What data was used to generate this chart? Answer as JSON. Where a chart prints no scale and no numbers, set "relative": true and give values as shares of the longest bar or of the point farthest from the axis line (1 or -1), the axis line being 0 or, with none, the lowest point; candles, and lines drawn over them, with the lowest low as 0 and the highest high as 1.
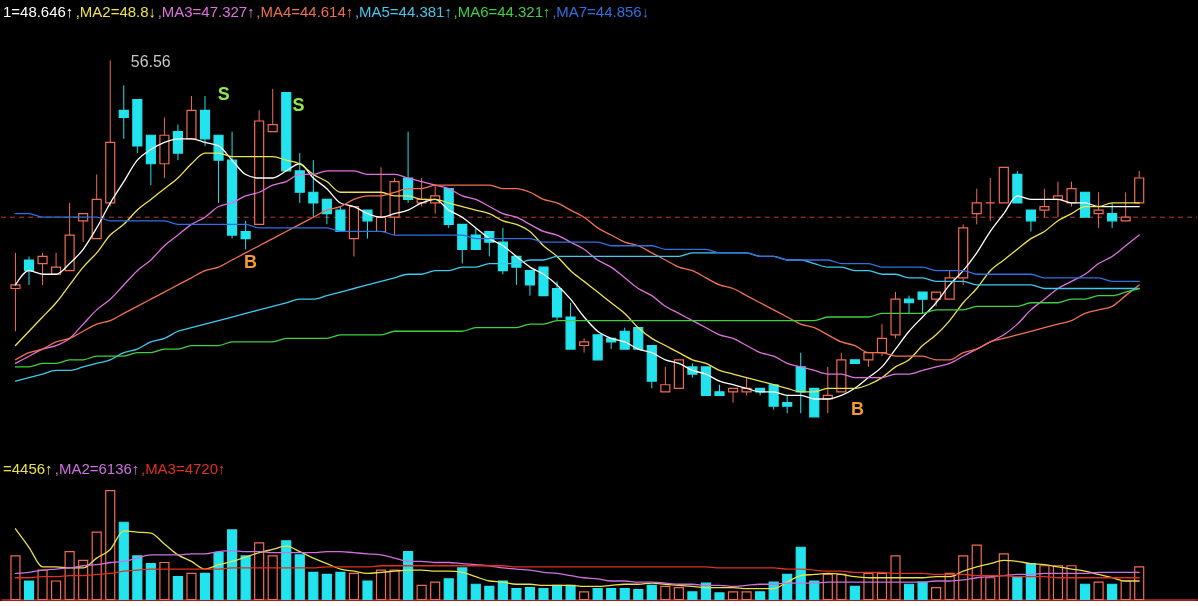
{
  "chart_data": [
    {
      "type": "candlestick",
      "relative": true,
      "legend": "top left",
      "categories": [
        null,
        null,
        null,
        null,
        null,
        null,
        null,
        null,
        null,
        null,
        null,
        null,
        null,
        null,
        null,
        null,
        null,
        null,
        null,
        null,
        null,
        null,
        null,
        null,
        null,
        null,
        null,
        null,
        null,
        null,
        null,
        null,
        null,
        null,
        null,
        null,
        null,
        null,
        null,
        null,
        null,
        null,
        null,
        null,
        null,
        null,
        null,
        null,
        null,
        null,
        null,
        null,
        null,
        null,
        null,
        null,
        null,
        null,
        null,
        null,
        null,
        null,
        null,
        null,
        null,
        null,
        null,
        null,
        null,
        null,
        null,
        null,
        null,
        null,
        null,
        null,
        null,
        null,
        null,
        null,
        null,
        null,
        null,
        null
      ],
      "ohlc": [
        [
          0.36,
          0.46,
          0.24,
          0.37
        ],
        [
          0.44,
          0.45,
          0.37,
          0.41
        ],
        [
          0.43,
          0.46,
          0.37,
          0.45
        ],
        [
          0.4,
          0.46,
          0.4,
          0.42
        ],
        [
          0.41,
          0.6,
          0.41,
          0.51
        ],
        [
          0.55,
          0.57,
          0.49,
          0.57
        ],
        [
          0.5,
          0.68,
          0.5,
          0.61
        ],
        [
          0.6,
          1.0,
          0.59,
          0.77
        ],
        [
          0.86,
          0.93,
          0.78,
          0.84
        ],
        [
          0.89,
          0.89,
          0.74,
          0.76
        ],
        [
          0.79,
          0.79,
          0.65,
          0.71
        ],
        [
          0.71,
          0.84,
          0.67,
          0.79
        ],
        [
          0.8,
          0.82,
          0.72,
          0.74
        ],
        [
          0.78,
          0.9,
          0.78,
          0.86
        ],
        [
          0.86,
          0.9,
          0.76,
          0.78
        ],
        [
          0.79,
          0.79,
          0.6,
          0.72
        ],
        [
          0.72,
          0.8,
          0.5,
          0.51
        ],
        [
          0.52,
          0.55,
          0.47,
          0.5
        ],
        [
          0.54,
          0.86,
          0.54,
          0.83
        ],
        [
          0.8,
          0.92,
          0.8,
          0.82
        ],
        [
          0.91,
          0.91,
          0.69,
          0.69
        ],
        [
          0.69,
          0.74,
          0.6,
          0.63
        ],
        [
          0.63,
          0.72,
          0.56,
          0.6
        ],
        [
          0.61,
          0.61,
          0.54,
          0.57
        ],
        [
          0.58,
          0.59,
          0.52,
          0.52
        ],
        [
          0.5,
          0.59,
          0.45,
          0.59
        ],
        [
          0.58,
          0.58,
          0.5,
          0.55
        ],
        [
          0.52,
          0.7,
          0.52,
          0.56
        ],
        [
          0.56,
          0.67,
          0.51,
          0.66
        ],
        [
          0.67,
          0.8,
          0.6,
          0.61
        ],
        [
          0.6,
          0.67,
          0.59,
          0.61
        ],
        [
          0.6,
          0.65,
          0.57,
          0.62
        ],
        [
          0.64,
          0.64,
          0.53,
          0.54
        ],
        [
          0.54,
          0.54,
          0.43,
          0.47
        ],
        [
          0.51,
          0.53,
          0.47,
          0.47
        ],
        [
          0.52,
          0.52,
          0.45,
          0.49
        ],
        [
          0.49,
          0.53,
          0.4,
          0.41
        ],
        [
          0.45,
          0.45,
          0.37,
          0.42
        ],
        [
          0.41,
          0.41,
          0.34,
          0.37
        ],
        [
          0.42,
          0.42,
          0.34,
          0.34
        ],
        [
          0.36,
          0.38,
          0.27,
          0.28
        ],
        [
          0.28,
          0.32,
          0.19,
          0.19
        ],
        [
          0.2,
          0.22,
          0.18,
          0.21
        ],
        [
          0.23,
          0.23,
          0.16,
          0.16
        ],
        [
          0.22,
          0.22,
          0.19,
          0.21
        ],
        [
          0.24,
          0.25,
          0.19,
          0.19
        ],
        [
          0.25,
          0.25,
          0.19,
          0.19
        ],
        [
          0.2,
          0.2,
          0.08,
          0.1
        ],
        [
          0.07,
          0.14,
          0.07,
          0.09
        ],
        [
          0.08,
          0.16,
          0.08,
          0.16
        ],
        [
          0.14,
          0.15,
          0.11,
          0.12
        ],
        [
          0.14,
          0.14,
          0.06,
          0.06
        ],
        [
          0.07,
          0.09,
          0.06,
          0.06
        ],
        [
          0.07,
          0.08,
          0.04,
          0.08
        ],
        [
          0.07,
          0.11,
          0.06,
          0.08
        ],
        [
          0.08,
          0.08,
          0.06,
          0.07
        ],
        [
          0.09,
          0.09,
          0.02,
          0.03
        ],
        [
          0.04,
          0.06,
          0.01,
          0.03
        ],
        [
          0.14,
          0.18,
          0.01,
          0.07
        ],
        [
          0.08,
          0.08,
          0.0,
          0.0
        ],
        [
          0.05,
          0.14,
          0.01,
          0.06
        ],
        [
          0.07,
          0.18,
          0.07,
          0.16
        ],
        [
          0.16,
          0.16,
          0.15,
          0.15
        ],
        [
          0.16,
          0.18,
          0.14,
          0.18
        ],
        [
          0.18,
          0.26,
          0.17,
          0.22
        ],
        [
          0.23,
          0.35,
          0.22,
          0.33
        ],
        [
          0.33,
          0.34,
          0.29,
          0.32
        ],
        [
          0.35,
          0.35,
          0.29,
          0.33
        ],
        [
          0.33,
          0.35,
          0.31,
          0.35
        ],
        [
          0.33,
          0.41,
          0.33,
          0.39
        ],
        [
          0.39,
          0.54,
          0.37,
          0.53
        ],
        [
          0.57,
          0.64,
          0.54,
          0.6
        ],
        [
          0.6,
          0.67,
          0.55,
          0.6
        ],
        [
          0.6,
          0.7,
          0.6,
          0.7
        ],
        [
          0.68,
          0.69,
          0.6,
          0.6
        ],
        [
          0.58,
          0.58,
          0.52,
          0.55
        ],
        [
          0.58,
          0.64,
          0.56,
          0.59
        ],
        [
          0.61,
          0.66,
          0.56,
          0.62
        ],
        [
          0.6,
          0.66,
          0.59,
          0.64
        ],
        [
          0.63,
          0.63,
          0.56,
          0.56
        ],
        [
          0.57,
          0.63,
          0.53,
          0.58
        ],
        [
          0.57,
          0.6,
          0.53,
          0.55
        ],
        [
          0.55,
          0.63,
          0.55,
          0.56
        ],
        [
          0.6,
          0.69,
          0.6,
          0.67
        ]
      ],
      "colors": [
        "#f26b50",
        "#22e3ee",
        "#f26b50",
        "#f26b50",
        "#f26b50",
        "#f26b50",
        "#f26b50",
        "#f26b50",
        "#22e3ee",
        "#22e3ee",
        "#22e3ee",
        "#f26b50",
        "#22e3ee",
        "#f26b50",
        "#22e3ee",
        "#22e3ee",
        "#22e3ee",
        "#22e3ee",
        "#f26b50",
        "#f26b50",
        "#22e3ee",
        "#22e3ee",
        "#22e3ee",
        "#22e3ee",
        "#22e3ee",
        "#f26b50",
        "#22e3ee",
        "#f26b50",
        "#f26b50",
        "#22e3ee",
        "#f26b50",
        "#f26b50",
        "#22e3ee",
        "#22e3ee",
        "#22e3ee",
        "#22e3ee",
        "#22e3ee",
        "#22e3ee",
        "#22e3ee",
        "#22e3ee",
        "#22e3ee",
        "#22e3ee",
        "#f26b50",
        "#22e3ee",
        "#22e3ee",
        "#22e3ee",
        "#22e3ee",
        "#22e3ee",
        "#f26b50",
        "#f26b50",
        "#22e3ee",
        "#22e3ee",
        "#22e3ee",
        "#f26b50",
        "#f26b50",
        "#22e3ee",
        "#22e3ee",
        "#22e3ee",
        "#22e3ee",
        "#22e3ee",
        "#f26b50",
        "#f26b50",
        "#22e3ee",
        "#f26b50",
        "#f26b50",
        "#f26b50",
        "#22e3ee",
        "#22e3ee",
        "#f26b50",
        "#f26b50",
        "#f26b50",
        "#f26b50",
        "#f26b50",
        "#f26b50",
        "#22e3ee",
        "#22e3ee",
        "#f26b50",
        "#f26b50",
        "#f26b50",
        "#22e3ee",
        "#f26b50",
        "#22e3ee",
        "#f26b50",
        "#f26b50"
      ],
      "series": [
        {
          "type": "line",
          "name": "1=48.646↑",
          "color": "#ffffff",
          "values": [
            0.37,
            0.41,
            0.4,
            0.4,
            0.43,
            0.47,
            0.53,
            0.6,
            0.66,
            0.72,
            0.75,
            0.77,
            0.78,
            0.78,
            0.77,
            0.76,
            0.72,
            0.68,
            0.67,
            0.67,
            0.69,
            0.71,
            0.67,
            0.64,
            0.6,
            0.59,
            0.57,
            0.56,
            0.57,
            0.58,
            0.6,
            0.61,
            0.58,
            0.56,
            0.53,
            0.5,
            0.48,
            0.45,
            0.42,
            0.4,
            0.37,
            0.33,
            0.28,
            0.24,
            0.22,
            0.21,
            0.19,
            0.18,
            0.16,
            0.15,
            0.13,
            0.12,
            0.1,
            0.09,
            0.08,
            0.07,
            0.07,
            0.06,
            0.06,
            0.05,
            0.05,
            0.06,
            0.08,
            0.11,
            0.14,
            0.19,
            0.24,
            0.28,
            0.32,
            0.37,
            0.41,
            0.46,
            0.52,
            0.57,
            0.62,
            0.61,
            0.61,
            0.61,
            0.6,
            0.6,
            0.59,
            0.59,
            0.59,
            0.59
          ]
        },
        {
          "type": "line",
          "name": ",MA2=48.8↓",
          "color": "#f0e050",
          "values": [
            0.2,
            0.24,
            0.28,
            0.32,
            0.37,
            0.42,
            0.46,
            0.51,
            0.54,
            0.58,
            0.61,
            0.64,
            0.67,
            0.71,
            0.74,
            0.74,
            0.73,
            0.73,
            0.73,
            0.73,
            0.72,
            0.71,
            0.68,
            0.66,
            0.63,
            0.63,
            0.63,
            0.63,
            0.62,
            0.62,
            0.61,
            0.61,
            0.6,
            0.59,
            0.58,
            0.57,
            0.55,
            0.54,
            0.52,
            0.48,
            0.45,
            0.41,
            0.38,
            0.35,
            0.32,
            0.29,
            0.25,
            0.22,
            0.2,
            0.18,
            0.16,
            0.15,
            0.13,
            0.12,
            0.11,
            0.1,
            0.09,
            0.08,
            0.07,
            0.07,
            0.08,
            0.08,
            0.08,
            0.09,
            0.11,
            0.14,
            0.16,
            0.2,
            0.23,
            0.27,
            0.32,
            0.36,
            0.41,
            0.44,
            0.47,
            0.5,
            0.52,
            0.55,
            0.57,
            0.59,
            0.59,
            0.6,
            0.6,
            0.6
          ]
        },
        {
          "type": "line",
          "name": ",MA3=47.327↑",
          "color": "#e070e0",
          "values": [
            0.15,
            0.17,
            0.19,
            0.2,
            0.22,
            0.26,
            0.3,
            0.33,
            0.37,
            0.41,
            0.44,
            0.48,
            0.51,
            0.54,
            0.56,
            0.59,
            0.6,
            0.62,
            0.63,
            0.65,
            0.66,
            0.68,
            0.68,
            0.69,
            0.69,
            0.69,
            0.68,
            0.68,
            0.68,
            0.67,
            0.66,
            0.65,
            0.64,
            0.62,
            0.61,
            0.59,
            0.57,
            0.56,
            0.54,
            0.52,
            0.51,
            0.49,
            0.47,
            0.44,
            0.42,
            0.39,
            0.36,
            0.34,
            0.31,
            0.29,
            0.27,
            0.25,
            0.23,
            0.22,
            0.2,
            0.18,
            0.17,
            0.15,
            0.14,
            0.13,
            0.12,
            0.12,
            0.11,
            0.11,
            0.11,
            0.12,
            0.12,
            0.13,
            0.14,
            0.15,
            0.17,
            0.19,
            0.21,
            0.23,
            0.26,
            0.3,
            0.33,
            0.36,
            0.38,
            0.4,
            0.43,
            0.45,
            0.48,
            0.51
          ]
        },
        {
          "type": "line",
          "name": ",MA4=44.614↑",
          "color": "#f07050",
          "values": [
            0.16,
            0.18,
            0.19,
            0.21,
            0.22,
            0.24,
            0.26,
            0.27,
            0.29,
            0.31,
            0.33,
            0.35,
            0.37,
            0.39,
            0.41,
            0.42,
            0.44,
            0.46,
            0.48,
            0.5,
            0.52,
            0.54,
            0.56,
            0.58,
            0.59,
            0.61,
            0.62,
            0.62,
            0.63,
            0.64,
            0.64,
            0.65,
            0.65,
            0.65,
            0.65,
            0.65,
            0.64,
            0.64,
            0.63,
            0.61,
            0.6,
            0.58,
            0.56,
            0.53,
            0.51,
            0.49,
            0.48,
            0.46,
            0.44,
            0.42,
            0.41,
            0.39,
            0.37,
            0.36,
            0.34,
            0.32,
            0.3,
            0.28,
            0.26,
            0.25,
            0.23,
            0.21,
            0.2,
            0.18,
            0.18,
            0.17,
            0.17,
            0.17,
            0.16,
            0.16,
            0.18,
            0.19,
            0.21,
            0.22,
            0.23,
            0.24,
            0.25,
            0.26,
            0.27,
            0.29,
            0.3,
            0.31,
            0.34,
            0.37
          ]
        },
        {
          "type": "line",
          "name": ",MA5=44.381↑",
          "color": "#40c8f0",
          "values": [
            0.1,
            0.11,
            0.12,
            0.13,
            0.13,
            0.14,
            0.15,
            0.16,
            0.18,
            0.19,
            0.21,
            0.22,
            0.24,
            0.25,
            0.26,
            0.27,
            0.28,
            0.29,
            0.3,
            0.31,
            0.32,
            0.33,
            0.33,
            0.34,
            0.35,
            0.36,
            0.37,
            0.38,
            0.39,
            0.4,
            0.4,
            0.41,
            0.41,
            0.42,
            0.42,
            0.43,
            0.43,
            0.43,
            0.44,
            0.44,
            0.45,
            0.45,
            0.45,
            0.45,
            0.45,
            0.45,
            0.45,
            0.45,
            0.45,
            0.45,
            0.46,
            0.46,
            0.46,
            0.46,
            0.46,
            0.45,
            0.45,
            0.44,
            0.44,
            0.43,
            0.42,
            0.42,
            0.41,
            0.41,
            0.4,
            0.4,
            0.39,
            0.39,
            0.38,
            0.38,
            0.38,
            0.37,
            0.37,
            0.37,
            0.37,
            0.37,
            0.36,
            0.36,
            0.36,
            0.36,
            0.36,
            0.36,
            0.36,
            0.36
          ]
        },
        {
          "type": "line",
          "name": ",MA6=44.321↑",
          "color": "#40d040",
          "values": [
            0.14,
            0.14,
            0.15,
            0.15,
            0.16,
            0.16,
            0.17,
            0.17,
            0.17,
            0.18,
            0.18,
            0.19,
            0.19,
            0.2,
            0.2,
            0.2,
            0.21,
            0.21,
            0.21,
            0.21,
            0.22,
            0.22,
            0.22,
            0.22,
            0.23,
            0.23,
            0.23,
            0.23,
            0.24,
            0.24,
            0.24,
            0.24,
            0.24,
            0.24,
            0.25,
            0.25,
            0.25,
            0.25,
            0.26,
            0.26,
            0.27,
            0.27,
            0.27,
            0.27,
            0.27,
            0.27,
            0.27,
            0.27,
            0.27,
            0.27,
            0.27,
            0.27,
            0.27,
            0.27,
            0.27,
            0.27,
            0.27,
            0.27,
            0.27,
            0.27,
            0.28,
            0.28,
            0.28,
            0.28,
            0.29,
            0.29,
            0.29,
            0.29,
            0.3,
            0.3,
            0.3,
            0.31,
            0.31,
            0.31,
            0.31,
            0.32,
            0.32,
            0.32,
            0.33,
            0.33,
            0.34,
            0.34,
            0.35,
            0.36
          ]
        },
        {
          "type": "line",
          "name": ",MA7=44.856↓",
          "color": "#3070e0",
          "values": [
            0.57,
            0.57,
            0.56,
            0.56,
            0.56,
            0.56,
            0.56,
            0.55,
            0.55,
            0.55,
            0.55,
            0.55,
            0.54,
            0.54,
            0.54,
            0.54,
            0.54,
            0.54,
            0.53,
            0.53,
            0.53,
            0.53,
            0.53,
            0.53,
            0.52,
            0.52,
            0.52,
            0.52,
            0.51,
            0.51,
            0.51,
            0.51,
            0.51,
            0.51,
            0.5,
            0.5,
            0.5,
            0.5,
            0.5,
            0.49,
            0.49,
            0.49,
            0.49,
            0.49,
            0.48,
            0.48,
            0.48,
            0.48,
            0.47,
            0.47,
            0.47,
            0.47,
            0.46,
            0.46,
            0.46,
            0.45,
            0.45,
            0.44,
            0.44,
            0.44,
            0.44,
            0.43,
            0.43,
            0.43,
            0.42,
            0.42,
            0.42,
            0.42,
            0.41,
            0.41,
            0.41,
            0.4,
            0.4,
            0.4,
            0.4,
            0.4,
            0.39,
            0.39,
            0.39,
            0.39,
            0.39,
            0.38,
            0.38,
            0.38
          ]
        }
      ],
      "ref_lines": [
        {
          "axis": "y",
          "value": 0.56,
          "color": "#c0392b",
          "line_style": "dashed"
        }
      ],
      "annotations": [
        "56.56",
        "S",
        "S",
        "B",
        "B"
      ]
    },
    {
      "type": "bar",
      "relative": true,
      "legend": "top left",
      "categories": [
        null,
        null,
        null,
        null,
        null,
        null,
        null,
        null,
        null,
        null,
        null,
        null,
        null,
        null,
        null,
        null,
        null,
        null,
        null,
        null,
        null,
        null,
        null,
        null,
        null,
        null,
        null,
        null,
        null,
        null,
        null,
        null,
        null,
        null,
        null,
        null,
        null,
        null,
        null,
        null,
        null,
        null,
        null,
        null,
        null,
        null,
        null,
        null,
        null,
        null,
        null,
        null,
        null,
        null,
        null,
        null,
        null,
        null,
        null,
        null,
        null,
        null,
        null,
        null,
        null,
        null,
        null,
        null,
        null,
        null,
        null,
        null,
        null,
        null,
        null,
        null,
        null,
        null,
        null,
        null,
        null,
        null,
        null,
        null
      ],
      "values": [
        0.4,
        0.17,
        0.27,
        0.17,
        0.44,
        0.36,
        0.62,
        1.0,
        0.71,
        0.4,
        0.33,
        0.34,
        0.21,
        0.24,
        0.24,
        0.43,
        0.64,
        0.4,
        0.52,
        0.4,
        0.54,
        0.41,
        0.25,
        0.23,
        0.25,
        0.24,
        0.17,
        0.27,
        0.27,
        0.44,
        0.13,
        0.16,
        0.19,
        0.29,
        0.14,
        0.12,
        0.17,
        0.1,
        0.11,
        0.1,
        0.13,
        0.13,
        0.07,
        0.1,
        0.1,
        0.1,
        0.09,
        0.13,
        0.12,
        0.11,
        0.07,
        0.15,
        0.06,
        0.07,
        0.07,
        0.07,
        0.16,
        0.23,
        0.48,
        0.17,
        0.23,
        0.23,
        0.12,
        0.24,
        0.24,
        0.4,
        0.14,
        0.16,
        0.11,
        0.24,
        0.4,
        0.5,
        0.2,
        0.42,
        0.21,
        0.33,
        0.31,
        0.31,
        0.31,
        0.14,
        0.16,
        0.14,
        0.17,
        0.3
      ],
      "colors": [
        "#f26b50",
        "#22e3ee",
        "#f26b50",
        "#f26b50",
        "#f26b50",
        "#f26b50",
        "#f26b50",
        "#f26b50",
        "#22e3ee",
        "#22e3ee",
        "#22e3ee",
        "#f26b50",
        "#22e3ee",
        "#f26b50",
        "#22e3ee",
        "#22e3ee",
        "#22e3ee",
        "#22e3ee",
        "#f26b50",
        "#f26b50",
        "#22e3ee",
        "#22e3ee",
        "#22e3ee",
        "#22e3ee",
        "#22e3ee",
        "#f26b50",
        "#22e3ee",
        "#f26b50",
        "#f26b50",
        "#22e3ee",
        "#f26b50",
        "#f26b50",
        "#22e3ee",
        "#22e3ee",
        "#22e3ee",
        "#22e3ee",
        "#22e3ee",
        "#22e3ee",
        "#22e3ee",
        "#22e3ee",
        "#22e3ee",
        "#22e3ee",
        "#f26b50",
        "#22e3ee",
        "#22e3ee",
        "#22e3ee",
        "#22e3ee",
        "#22e3ee",
        "#f26b50",
        "#f26b50",
        "#22e3ee",
        "#22e3ee",
        "#22e3ee",
        "#f26b50",
        "#f26b50",
        "#22e3ee",
        "#22e3ee",
        "#22e3ee",
        "#22e3ee",
        "#22e3ee",
        "#f26b50",
        "#f26b50",
        "#22e3ee",
        "#f26b50",
        "#f26b50",
        "#f26b50",
        "#22e3ee",
        "#22e3ee",
        "#f26b50",
        "#f26b50",
        "#f26b50",
        "#f26b50",
        "#f26b50",
        "#f26b50",
        "#22e3ee",
        "#22e3ee",
        "#f26b50",
        "#f26b50",
        "#f26b50",
        "#22e3ee",
        "#f26b50",
        "#22e3ee",
        "#f26b50",
        "#f26b50"
      ],
      "series": [
        {
          "type": "line",
          "name": "=4456↑",
          "color": "#e8e04a",
          "values": [
            0.65,
            0.48,
            0.3,
            0.3,
            0.29,
            0.29,
            0.38,
            0.46,
            0.63,
            0.62,
            0.61,
            0.51,
            0.41,
            0.35,
            0.28,
            0.32,
            0.35,
            0.39,
            0.43,
            0.46,
            0.49,
            0.44,
            0.38,
            0.33,
            0.28,
            0.26,
            0.24,
            0.25,
            0.26,
            0.27,
            0.27,
            0.26,
            0.26,
            0.25,
            0.21,
            0.17,
            0.16,
            0.14,
            0.14,
            0.13,
            0.13,
            0.13,
            0.12,
            0.12,
            0.13,
            0.14,
            0.14,
            0.15,
            0.14,
            0.13,
            0.12,
            0.11,
            0.11,
            0.11,
            0.1,
            0.1,
            0.1,
            0.16,
            0.22,
            0.23,
            0.24,
            0.23,
            0.21,
            0.2,
            0.2,
            0.2,
            0.2,
            0.2,
            0.21,
            0.21,
            0.26,
            0.3,
            0.33,
            0.36,
            0.35,
            0.33,
            0.32,
            0.3,
            0.28,
            0.26,
            0.23,
            0.2,
            0.17,
            0.17
          ]
        },
        {
          "type": "line",
          "name": ",MA2=6136↑",
          "color": "#d070e0",
          "values": [
            0.24,
            0.25,
            0.27,
            0.28,
            0.29,
            0.31,
            0.32,
            0.34,
            0.35,
            0.38,
            0.41,
            0.41,
            0.41,
            0.42,
            0.42,
            0.44,
            0.45,
            0.44,
            0.44,
            0.43,
            0.43,
            0.43,
            0.43,
            0.44,
            0.44,
            0.43,
            0.42,
            0.41,
            0.38,
            0.35,
            0.35,
            0.34,
            0.34,
            0.33,
            0.32,
            0.31,
            0.29,
            0.28,
            0.27,
            0.25,
            0.24,
            0.22,
            0.2,
            0.19,
            0.17,
            0.17,
            0.16,
            0.16,
            0.15,
            0.14,
            0.14,
            0.13,
            0.13,
            0.12,
            0.13,
            0.14,
            0.14,
            0.15,
            0.15,
            0.15,
            0.16,
            0.16,
            0.16,
            0.16,
            0.16,
            0.16,
            0.16,
            0.16,
            0.17,
            0.17,
            0.18,
            0.2,
            0.21,
            0.22,
            0.23,
            0.23,
            0.24,
            0.24,
            0.24,
            0.24,
            0.25,
            0.25,
            0.25,
            0.25
          ]
        },
        {
          "type": "line",
          "name": ",MA3=4720↑",
          "color": "#e03020",
          "values": [
            0.2,
            0.2,
            0.21,
            0.21,
            0.22,
            0.22,
            0.23,
            0.24,
            0.26,
            0.27,
            0.28,
            0.28,
            0.28,
            0.28,
            0.28,
            0.28,
            0.29,
            0.29,
            0.29,
            0.29,
            0.29,
            0.29,
            0.29,
            0.3,
            0.3,
            0.3,
            0.3,
            0.31,
            0.31,
            0.31,
            0.31,
            0.31,
            0.31,
            0.31,
            0.31,
            0.31,
            0.31,
            0.3,
            0.3,
            0.3,
            0.3,
            0.3,
            0.3,
            0.3,
            0.3,
            0.3,
            0.3,
            0.3,
            0.3,
            0.3,
            0.3,
            0.3,
            0.29,
            0.29,
            0.29,
            0.29,
            0.29,
            0.28,
            0.28,
            0.27,
            0.26,
            0.26,
            0.25,
            0.25,
            0.25,
            0.24,
            0.24,
            0.24,
            0.23,
            0.23,
            0.23,
            0.22,
            0.22,
            0.22,
            0.21,
            0.21,
            0.21,
            0.2,
            0.2,
            0.2,
            0.2,
            0.2,
            0.2,
            0.2
          ]
        }
      ]
    }
  ]
}
